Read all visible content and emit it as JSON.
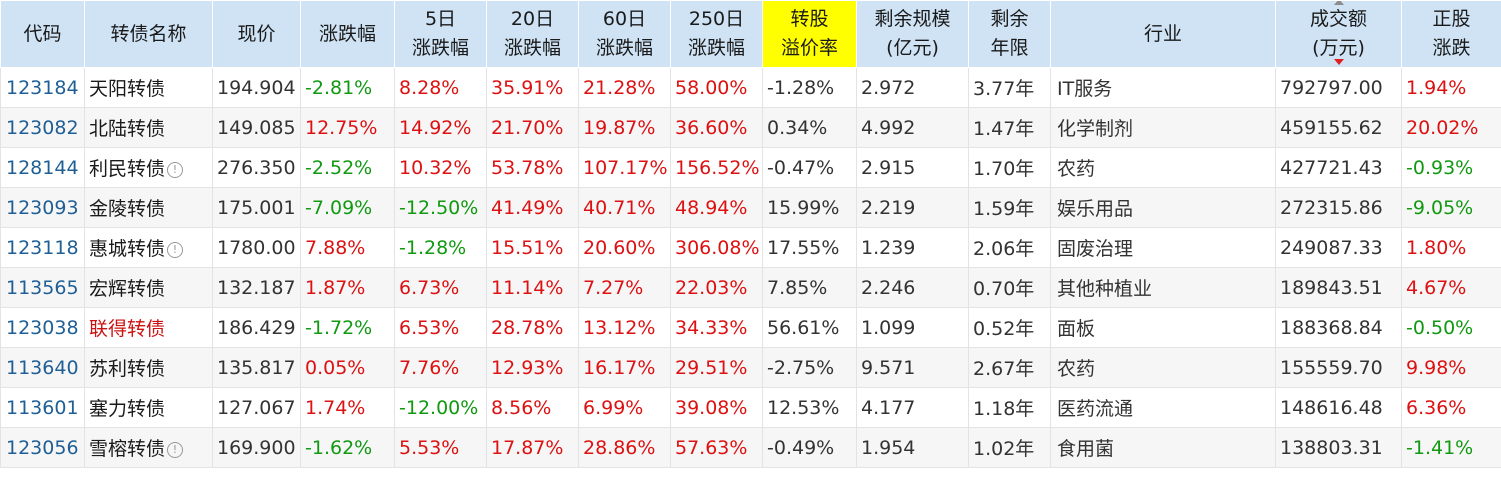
{
  "columns": [
    "代码",
    "转债名称",
    "现价",
    "涨跌幅",
    "5日\n涨跌幅",
    "20日\n涨跌幅",
    "60日\n涨跌幅",
    "250日\n涨跌幅",
    "转股\n溢价率",
    "剩余规模\n(亿元)",
    "剩余\n年限",
    "行业",
    "成交额\n(万元)",
    "正股\n涨跌"
  ],
  "sort": {
    "column": "成交额",
    "direction": "desc"
  },
  "rows": [
    {
      "code": "123184",
      "name": "天阳转债",
      "info": false,
      "hot": false,
      "price": "194.904",
      "chg": "-2.81%",
      "chg5": "8.28%",
      "chg20": "35.91%",
      "chg60": "21.28%",
      "chg250": "58.00%",
      "premium": "-1.28%",
      "scale": "2.972",
      "years": "3.77年",
      "industry": "IT服务",
      "amount": "792797.00",
      "stock": "1.94%"
    },
    {
      "code": "123082",
      "name": "北陆转债",
      "info": false,
      "hot": false,
      "price": "149.085",
      "chg": "12.75%",
      "chg5": "14.92%",
      "chg20": "21.70%",
      "chg60": "19.87%",
      "chg250": "36.60%",
      "premium": "0.34%",
      "scale": "4.992",
      "years": "1.47年",
      "industry": "化学制剂",
      "amount": "459155.62",
      "stock": "20.02%"
    },
    {
      "code": "128144",
      "name": "利民转债",
      "info": true,
      "hot": false,
      "price": "276.350",
      "chg": "-2.52%",
      "chg5": "10.32%",
      "chg20": "53.78%",
      "chg60": "107.17%",
      "chg250": "156.52%",
      "premium": "-0.47%",
      "scale": "2.915",
      "years": "1.70年",
      "industry": "农药",
      "amount": "427721.43",
      "stock": "-0.93%"
    },
    {
      "code": "123093",
      "name": "金陵转债",
      "info": false,
      "hot": false,
      "price": "175.001",
      "chg": "-7.09%",
      "chg5": "-12.50%",
      "chg20": "41.49%",
      "chg60": "40.71%",
      "chg250": "48.94%",
      "premium": "15.99%",
      "scale": "2.219",
      "years": "1.59年",
      "industry": "娱乐用品",
      "amount": "272315.86",
      "stock": "-9.05%"
    },
    {
      "code": "123118",
      "name": "惠城转债",
      "info": true,
      "hot": false,
      "price": "1780.00",
      "chg": "7.88%",
      "chg5": "-1.28%",
      "chg20": "15.51%",
      "chg60": "20.60%",
      "chg250": "306.08%",
      "premium": "17.55%",
      "scale": "1.239",
      "years": "2.06年",
      "industry": "固废治理",
      "amount": "249087.33",
      "stock": "1.80%"
    },
    {
      "code": "113565",
      "name": "宏辉转债",
      "info": false,
      "hot": false,
      "price": "132.187",
      "chg": "1.87%",
      "chg5": "6.73%",
      "chg20": "11.14%",
      "chg60": "7.27%",
      "chg250": "22.03%",
      "premium": "7.85%",
      "scale": "2.246",
      "years": "0.70年",
      "industry": "其他种植业",
      "amount": "189843.51",
      "stock": "4.67%"
    },
    {
      "code": "123038",
      "name": "联得转债",
      "info": false,
      "hot": true,
      "price": "186.429",
      "chg": "-1.72%",
      "chg5": "6.53%",
      "chg20": "28.78%",
      "chg60": "13.12%",
      "chg250": "34.33%",
      "premium": "56.61%",
      "scale": "1.099",
      "years": "0.52年",
      "industry": "面板",
      "amount": "188368.84",
      "stock": "-0.50%"
    },
    {
      "code": "113640",
      "name": "苏利转债",
      "info": false,
      "hot": false,
      "price": "135.817",
      "chg": "0.05%",
      "chg5": "7.76%",
      "chg20": "12.93%",
      "chg60": "16.17%",
      "chg250": "29.51%",
      "premium": "-2.75%",
      "scale": "9.571",
      "years": "2.67年",
      "industry": "农药",
      "amount": "155559.70",
      "stock": "9.98%"
    },
    {
      "code": "113601",
      "name": "塞力转债",
      "info": false,
      "hot": false,
      "price": "127.067",
      "chg": "1.74%",
      "chg5": "-12.00%",
      "chg20": "8.56%",
      "chg60": "6.99%",
      "chg250": "39.08%",
      "premium": "12.53%",
      "scale": "4.177",
      "years": "1.18年",
      "industry": "医药流通",
      "amount": "148616.48",
      "stock": "6.36%"
    },
    {
      "code": "123056",
      "name": "雪榕转债",
      "info": true,
      "hot": false,
      "price": "169.900",
      "chg": "-1.62%",
      "chg5": "5.53%",
      "chg20": "17.87%",
      "chg60": "28.86%",
      "chg250": "57.63%",
      "premium": "-0.49%",
      "scale": "1.954",
      "years": "1.02年",
      "industry": "食用菌",
      "amount": "138803.31",
      "stock": "-1.41%"
    }
  ],
  "info_icon": "info-circle-icon",
  "colors": {
    "header_bg": "#cfe3f5",
    "highlight_header": "#ffff00",
    "up": "#dd1111",
    "down": "#119911",
    "code": "#1f5f95",
    "hot_name": "#cc1111"
  }
}
